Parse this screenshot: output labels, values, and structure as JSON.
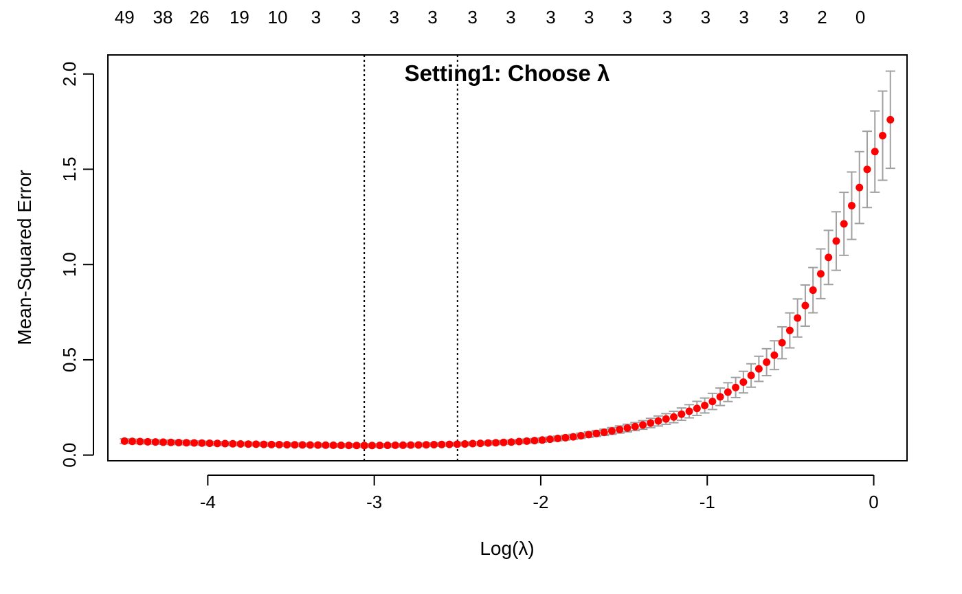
{
  "chart_data": {
    "type": "scatter",
    "title": "Setting1: Choose λ",
    "xlabel": "Log(λ)",
    "ylabel": "Mean-Squared Error",
    "xlim": [
      -4.6,
      0.2
    ],
    "ylim": [
      -0.03,
      2.1
    ],
    "x_ticks": [
      -4,
      -3,
      -2,
      -1,
      0
    ],
    "x_tick_labels": [
      "-4",
      "-3",
      "-2",
      "-1",
      "0"
    ],
    "y_ticks": [
      0.0,
      0.5,
      1.0,
      1.5,
      2.0
    ],
    "y_tick_labels": [
      "0.0",
      "0.5",
      "1.0",
      "1.5",
      "2.0"
    ],
    "top_axis_labels": [
      {
        "x": -4.5,
        "label": "49"
      },
      {
        "x": -4.27,
        "label": "38"
      },
      {
        "x": -4.05,
        "label": "26"
      },
      {
        "x": -3.81,
        "label": "19"
      },
      {
        "x": -3.58,
        "label": "10"
      },
      {
        "x": -3.35,
        "label": "3"
      },
      {
        "x": -3.11,
        "label": "3"
      },
      {
        "x": -2.88,
        "label": "3"
      },
      {
        "x": -2.65,
        "label": "3"
      },
      {
        "x": -2.41,
        "label": "3"
      },
      {
        "x": -2.18,
        "label": "3"
      },
      {
        "x": -1.94,
        "label": "3"
      },
      {
        "x": -1.71,
        "label": "3"
      },
      {
        "x": -1.48,
        "label": "3"
      },
      {
        "x": -1.24,
        "label": "3"
      },
      {
        "x": -1.01,
        "label": "3"
      },
      {
        "x": -0.78,
        "label": "3"
      },
      {
        "x": -0.54,
        "label": "3"
      },
      {
        "x": -0.31,
        "label": "2"
      },
      {
        "x": -0.08,
        "label": "0"
      }
    ],
    "vlines": [
      -3.06,
      -2.5
    ],
    "grid": false,
    "series": [
      {
        "color": "#ff0000",
        "error_bar_color": "#a0a0a0",
        "log_lambda_start": -4.5,
        "log_lambda_end": 0.1,
        "n_points": 100,
        "points": [
          {
            "x": -4.5,
            "y": 0.073,
            "se": 0.012
          },
          {
            "x": -4.2,
            "y": 0.066,
            "se": 0.011
          },
          {
            "x": -3.9,
            "y": 0.06,
            "se": 0.01
          },
          {
            "x": -3.6,
            "y": 0.055,
            "se": 0.009
          },
          {
            "x": -3.3,
            "y": 0.052,
            "se": 0.009
          },
          {
            "x": -3.06,
            "y": 0.05,
            "se": 0.009
          },
          {
            "x": -2.8,
            "y": 0.052,
            "se": 0.009
          },
          {
            "x": -2.5,
            "y": 0.057,
            "se": 0.009
          },
          {
            "x": -2.2,
            "y": 0.067,
            "se": 0.01
          },
          {
            "x": -2.0,
            "y": 0.078,
            "se": 0.011
          },
          {
            "x": -1.8,
            "y": 0.096,
            "se": 0.013
          },
          {
            "x": -1.6,
            "y": 0.122,
            "se": 0.017
          },
          {
            "x": -1.4,
            "y": 0.155,
            "se": 0.022
          },
          {
            "x": -1.2,
            "y": 0.2,
            "se": 0.03
          },
          {
            "x": -1.0,
            "y": 0.265,
            "se": 0.04
          },
          {
            "x": -0.8,
            "y": 0.37,
            "se": 0.055
          },
          {
            "x": -0.6,
            "y": 0.52,
            "se": 0.075
          },
          {
            "x": -0.4,
            "y": 0.8,
            "se": 0.11
          },
          {
            "x": -0.2,
            "y": 1.17,
            "se": 0.16
          },
          {
            "x": 0.0,
            "y": 1.58,
            "se": 0.21
          },
          {
            "x": 0.1,
            "y": 1.76,
            "se": 0.255
          }
        ]
      }
    ]
  }
}
